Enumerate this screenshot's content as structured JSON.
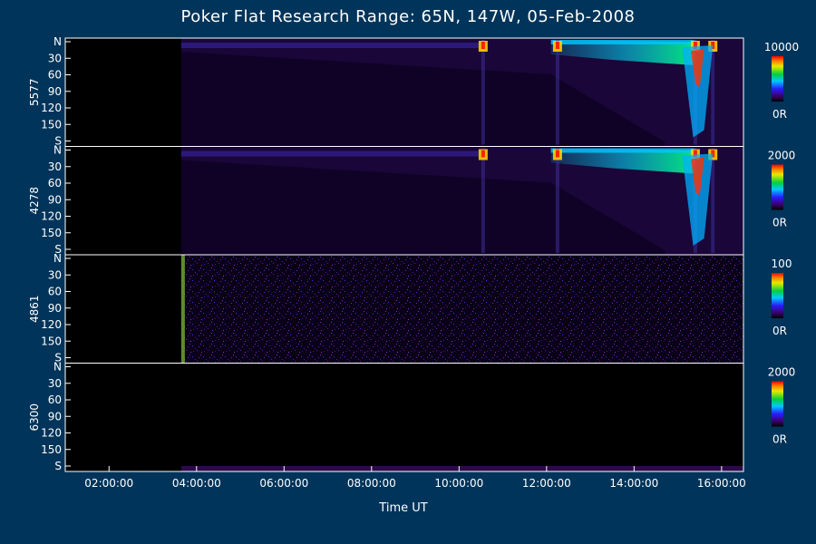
{
  "title": "Poker Flat Research Range: 65N, 147W, 05-Feb-2008",
  "chart_data": {
    "type": "heatmap",
    "title": "Poker Flat Research Range: 65N, 147W, 05-Feb-2008",
    "xlabel": "Time UT",
    "x_range_hours": [
      1.0,
      16.5
    ],
    "x_ticks": [
      "02:00:00",
      "04:00:00",
      "06:00:00",
      "08:00:00",
      "10:00:00",
      "12:00:00",
      "14:00:00",
      "16:00:00"
    ],
    "x_tick_hours": [
      2,
      4,
      6,
      8,
      10,
      12,
      14,
      16
    ],
    "data_start_hour": 3.65,
    "y_ticks": [
      "N",
      "30",
      "60",
      "90",
      "120",
      "150",
      "S"
    ],
    "y_tick_values": [
      0,
      30,
      60,
      90,
      120,
      150,
      180
    ],
    "y_range": [
      0,
      180
    ],
    "panels": [
      {
        "wavelength": "5577",
        "colorbar_max": "10000",
        "colorbar_min": "0R",
        "activity": "high",
        "events_hours": [
          10.55,
          12.25,
          15.4,
          15.8
        ]
      },
      {
        "wavelength": "4278",
        "colorbar_max": "2000",
        "colorbar_min": "0R",
        "activity": "high",
        "events_hours": [
          10.55,
          12.25,
          15.4,
          15.8
        ]
      },
      {
        "wavelength": "4861",
        "colorbar_max": "100",
        "colorbar_min": "0R",
        "activity": "noise",
        "events_hours": []
      },
      {
        "wavelength": "6300",
        "colorbar_max": "2000",
        "colorbar_min": "0R",
        "activity": "low",
        "events_hours": []
      }
    ]
  }
}
